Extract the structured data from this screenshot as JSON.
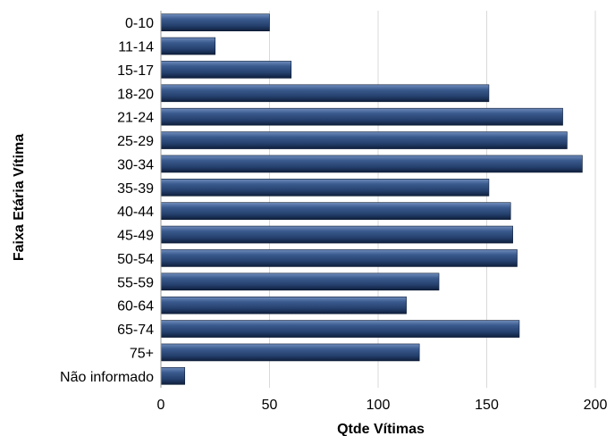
{
  "chart_data": {
    "type": "bar",
    "orientation": "horizontal",
    "categories": [
      "0-10",
      "11-14",
      "15-17",
      "18-20",
      "21-24",
      "25-29",
      "30-34",
      "35-39",
      "40-44",
      "45-49",
      "50-54",
      "55-59",
      "60-64",
      "65-74",
      "75+",
      "Não informado"
    ],
    "values": [
      50,
      25,
      60,
      151,
      185,
      187,
      194,
      151,
      161,
      162,
      164,
      128,
      113,
      165,
      119,
      11
    ],
    "xlabel": "Qtde Vítimas",
    "ylabel": "Faixa Etária Vítima",
    "xlim": [
      0,
      200
    ],
    "xticks": [
      0,
      50,
      100,
      150,
      200
    ],
    "grid": true,
    "bar_color": "#2a4a7c"
  }
}
